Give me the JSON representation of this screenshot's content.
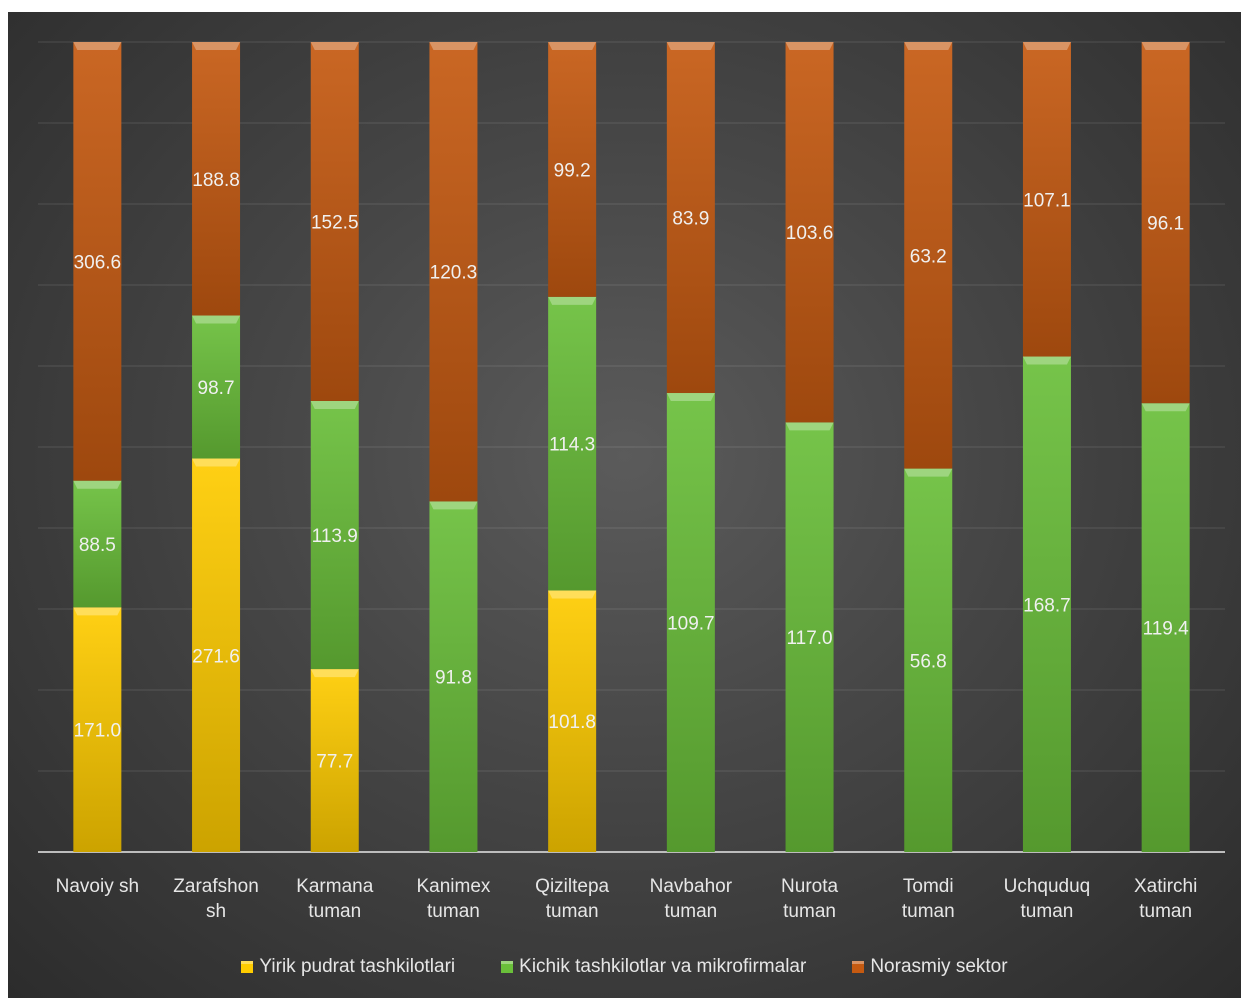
{
  "chart_data": {
    "type": "bar",
    "stacked": true,
    "categories": [
      "Navoiy sh",
      "Zarafshon\nsh",
      "Karmana\ntuman",
      "Kanimex\ntuman",
      "Qiziltepa\ntuman",
      "Navbahor\ntuman",
      "Nurota\ntuman",
      "Tomdi\ntuman",
      "Uchquduq\ntuman",
      "Xatirchi\ntuman"
    ],
    "series": [
      {
        "name": "Yirik pudrat tashkilotlari",
        "color": "#ffcc00",
        "values": [
          171.0,
          271.6,
          77.7,
          null,
          101.8,
          null,
          null,
          null,
          null,
          null
        ],
        "labels": [
          "171.0",
          "271.6",
          "77.7",
          "",
          "101.8",
          "",
          "",
          "",
          "",
          ""
        ]
      },
      {
        "name": "Kichik tashkilotlar va mikrofirmalar",
        "color": "#6abf3a",
        "values": [
          88.5,
          98.7,
          113.9,
          91.8,
          114.3,
          109.7,
          117.0,
          56.8,
          168.7,
          119.4
        ],
        "labels": [
          "88.5",
          "98.7",
          "113.9",
          "91.8",
          "114.3",
          "109.7",
          "117.0",
          "56.8",
          "168.7",
          "119.4"
        ]
      },
      {
        "name": "Norasmiy sektor",
        "color": "#c55a11",
        "values": [
          306.6,
          188.8,
          152.5,
          120.3,
          99.2,
          83.9,
          103.6,
          63.2,
          107.1,
          96.1
        ],
        "labels": [
          "306.6",
          "188.8",
          "152.5",
          "120.3",
          "99.2",
          "83.9",
          "103.6",
          "63.2",
          "107.1",
          "96.1"
        ]
      }
    ],
    "percent_stacked": true,
    "grid": true,
    "legend_position": "bottom"
  }
}
